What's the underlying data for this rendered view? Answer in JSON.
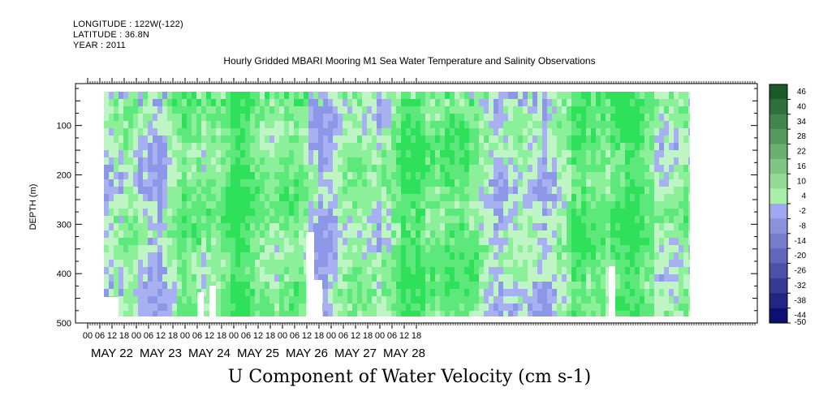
{
  "header": {
    "longitude": "LONGITUDE : 122W(-122)",
    "latitude": "LATITUDE : 36.8N",
    "year": "YEAR : 2011"
  },
  "chart_data": {
    "type": "heatmap",
    "title": "Hourly Gridded MBARI Mooring M1 Sea Water Temperature and Salinity Observations",
    "xlabel": "U Component of Water Velocity (cm s-1)",
    "ylabel": "DEPTH (m)",
    "y_axis": {
      "ticks": [
        100,
        200,
        300,
        400,
        500
      ],
      "range": [
        15,
        500
      ],
      "inverted": true
    },
    "x_axis": {
      "hour_ticks": [
        "00",
        "06",
        "12",
        "18",
        "00",
        "06",
        "12",
        "18",
        "00",
        "06",
        "12",
        "18",
        "00",
        "06",
        "12",
        "18",
        "00",
        "06",
        "12",
        "18",
        "00",
        "06",
        "12",
        "18",
        "00",
        "06",
        "12",
        "18"
      ],
      "day_labels": [
        "MAY 22",
        "MAY 23",
        "MAY 24",
        "MAY 25",
        "MAY 26",
        "MAY 27",
        "MAY 28"
      ]
    },
    "colorbar": {
      "labels": [
        46,
        40,
        34,
        28,
        22,
        16,
        10,
        4,
        -2,
        -8,
        -14,
        -20,
        -26,
        -32,
        -38,
        -44,
        -50
      ],
      "low_color": "#000066",
      "mid_low_color": "#9fa8ee",
      "mid_high_color": "#a8f0a8",
      "high_color": "#1a5a2a"
    },
    "field_colors": [
      "#2ee05a",
      "#5ce87a",
      "#8cef9a",
      "#bff5c5",
      "#a7b0f0",
      "#8d97e8"
    ]
  }
}
